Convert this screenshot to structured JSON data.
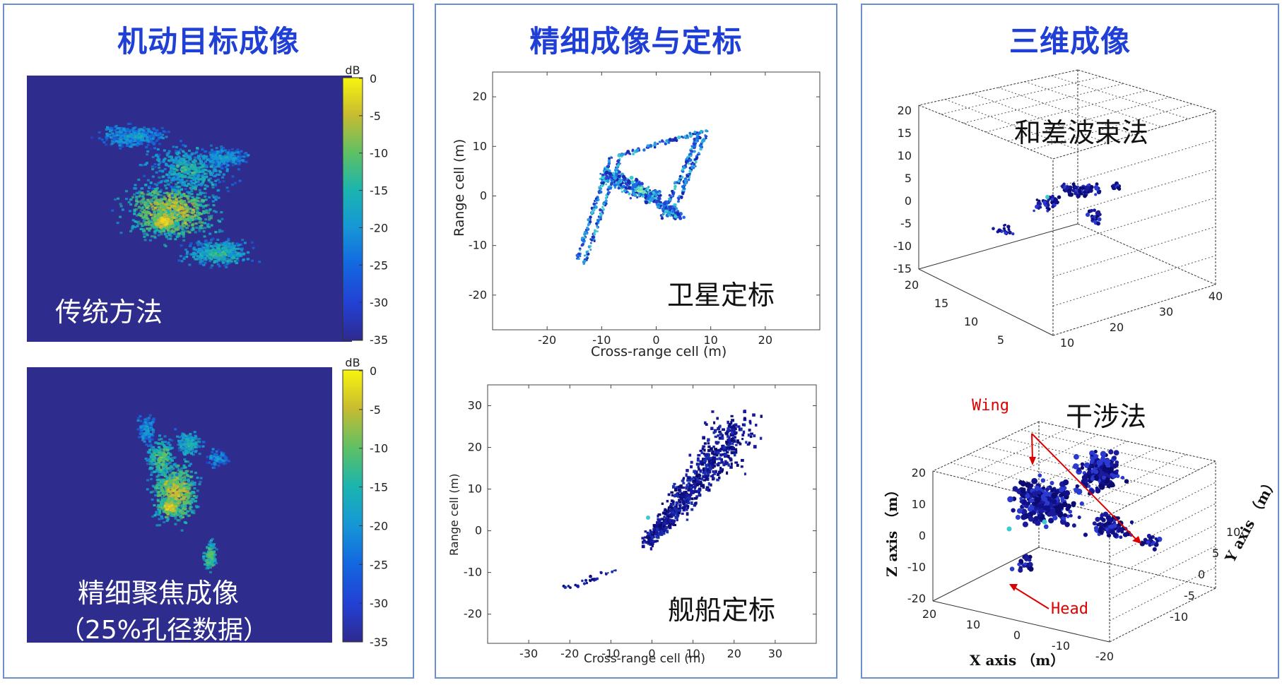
{
  "panels": {
    "maneuver": {
      "title": "机动目标成像",
      "top_label": "传统方法",
      "bottom_label_line1": "精细聚焦成像",
      "bottom_label_line2": "（25%孔径数据）",
      "colorbar": {
        "unit": "dB",
        "ticks": [
          "0",
          "-5",
          "-10",
          "-15",
          "-20",
          "-25",
          "-30",
          "-35"
        ]
      },
      "background_color": "#2e2c8c"
    },
    "calibration": {
      "title": "精细成像与定标",
      "satellite": {
        "label": "卫星定标",
        "xlabel": "Cross-range cell (m)",
        "ylabel": "Range cell (m)",
        "xticks": [
          "-20",
          "-10",
          "0",
          "10",
          "20"
        ],
        "yticks": [
          "20",
          "10",
          "0",
          "-10",
          "-20"
        ]
      },
      "ship": {
        "label": "舰船定标",
        "xlabel": "Cross-range cell (m)",
        "ylabel": "Range cell (m)",
        "xticks": [
          "-30",
          "-20",
          "-10",
          "0",
          "10",
          "20",
          "30"
        ],
        "yticks": [
          "30",
          "20",
          "10",
          "0",
          "-10",
          "-20"
        ]
      }
    },
    "threed": {
      "title": "三维成像",
      "top": {
        "label": "和差波束法",
        "zticks": [
          "20",
          "15",
          "10",
          "5",
          "0",
          "-5",
          "-10",
          "-15"
        ],
        "left_ticks": [
          "20",
          "15",
          "10",
          "5"
        ],
        "right_ticks": [
          "10",
          "20",
          "30",
          "40"
        ]
      },
      "bottom": {
        "label": "干涉法",
        "zticks": [
          "20",
          "10",
          "0",
          "-10",
          "-20"
        ],
        "xticks": [
          "20",
          "10",
          "0",
          "-10",
          "-20"
        ],
        "yticks": [
          "10",
          "5",
          "0",
          "-5",
          "-10"
        ],
        "xlabel": "X axis （m）",
        "ylabel": "Y axis （m）",
        "zlabel": "Z axis （m）",
        "annot_wing": "Wing",
        "annot_head": "Head"
      }
    }
  },
  "colors": {
    "title": "#1f3fd6",
    "border": "#6b8fd0",
    "point": "#1a1a9a",
    "annotation": "#e00000"
  }
}
